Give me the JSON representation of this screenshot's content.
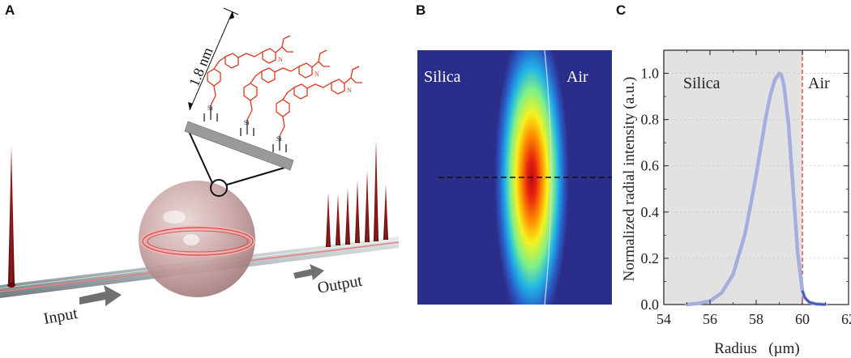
{
  "figure": {
    "panels": [
      {
        "letter": "A"
      },
      {
        "letter": "B"
      },
      {
        "letter": "C"
      }
    ]
  },
  "panel_a": {
    "scale_label": "1.8 nm",
    "input_label": "Input",
    "output_label": "Output",
    "molecule_atom_n": "N",
    "molecule_atom_si": "Si",
    "molecule_atom_o": "O",
    "colors": {
      "molecule": "#d9381e",
      "sphere": "#b57a7a",
      "fiber": "#9aa4a8",
      "pulse": "#7a1010"
    }
  },
  "panel_b": {
    "left_label": "Silica",
    "right_label": "Air",
    "colors": {
      "background": "#2b2d8a",
      "peak": "#c81010"
    }
  },
  "chart_data": {
    "type": "line",
    "xlabel": "Radius   (µm)",
    "ylabel": "Normalized radial intensity (a.u.)",
    "xlim": [
      54,
      62
    ],
    "ylim": [
      0,
      1.1
    ],
    "xticks": [
      54,
      56,
      58,
      60,
      62
    ],
    "yticks": [
      0.0,
      0.2,
      0.4,
      0.6,
      0.8,
      1.0
    ],
    "region_labels": {
      "left": "Silica",
      "right": "Air"
    },
    "boundary_x": 60,
    "grid": true,
    "series": [
      {
        "x": [
          55.0,
          55.5,
          56.0,
          56.5,
          57.0,
          57.5,
          57.8,
          58.0,
          58.2,
          58.4,
          58.6,
          58.8,
          59.0,
          59.1,
          59.2,
          59.4,
          59.6,
          59.8,
          60.0,
          60.1,
          60.3,
          60.6,
          61.0
        ],
        "y": [
          0.0,
          0.005,
          0.015,
          0.05,
          0.13,
          0.3,
          0.45,
          0.56,
          0.68,
          0.8,
          0.9,
          0.97,
          1.0,
          0.99,
          0.95,
          0.78,
          0.5,
          0.22,
          0.06,
          0.03,
          0.01,
          0.002,
          0.0
        ],
        "color": "#a6aee0"
      }
    ]
  }
}
